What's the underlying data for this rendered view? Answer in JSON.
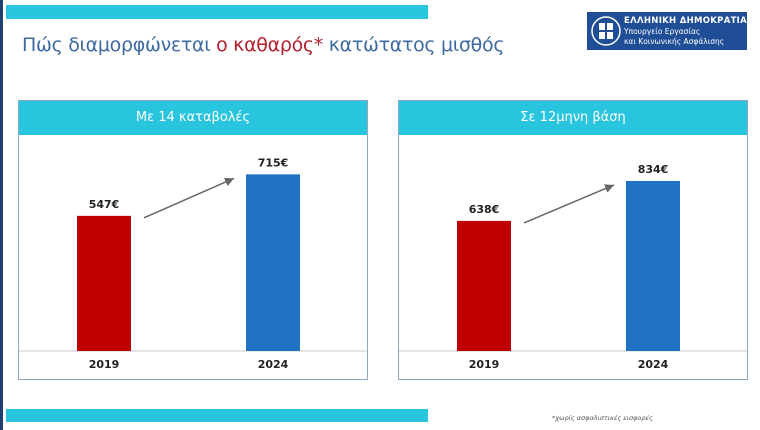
{
  "title": {
    "part1": "Πώς διαμορφώνεται ",
    "highlight": "ο καθαρός*",
    "part2": " κατώτατος μισθός"
  },
  "logo": {
    "line1": "ΕΛΛΗΝΙΚΗ ΔΗΜΟΚΡΑΤΙΑ",
    "line2": "Υπουργείο Εργασίας",
    "line3": "και Κοινωνικής Ασφάλισης"
  },
  "footnote": "*χωρίς ασφαλιστικές εισφορές",
  "colors": {
    "accent": "#29c4de",
    "red": "#c00000",
    "blue": "#1f72c4"
  },
  "chart_data": [
    {
      "type": "bar",
      "title": "Με 14 καταβολές",
      "categories": [
        "2019",
        "2024"
      ],
      "values": [
        547,
        715
      ],
      "labels": [
        "547€",
        "715€"
      ],
      "ylim": [
        0,
        850
      ],
      "colors": [
        "#c00000",
        "#1f72c4"
      ],
      "grid": false
    },
    {
      "type": "bar",
      "title": "Σε 12μηνη βάση",
      "categories": [
        "2019",
        "2024"
      ],
      "values": [
        638,
        834
      ],
      "labels": [
        "638€",
        "834€"
      ],
      "ylim": [
        0,
        1030
      ],
      "colors": [
        "#c00000",
        "#1f72c4"
      ],
      "grid": false
    }
  ]
}
